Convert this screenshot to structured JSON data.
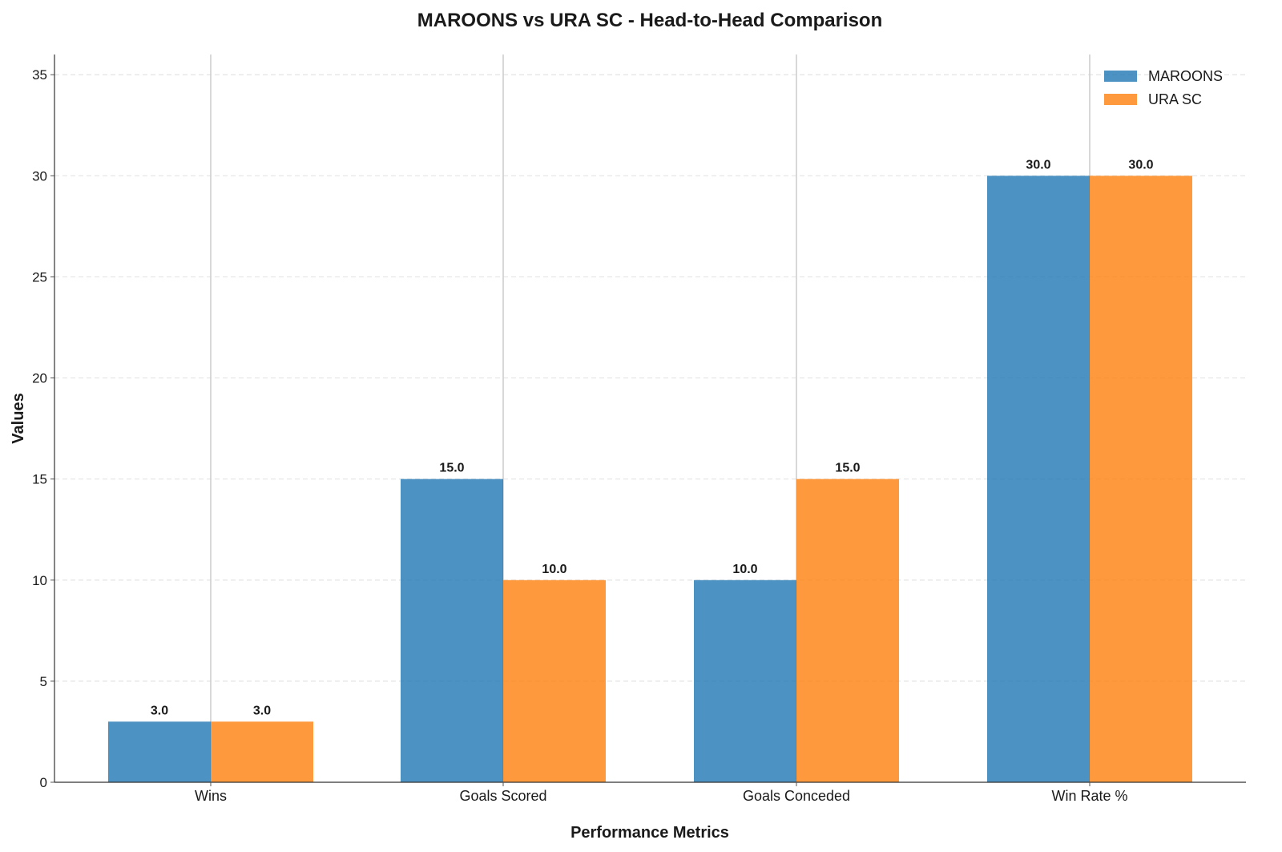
{
  "chart_data": {
    "type": "bar",
    "title": "MAROONS vs URA SC - Head-to-Head Comparison",
    "xlabel": "Performance Metrics",
    "ylabel": "Values",
    "categories": [
      "Wins",
      "Goals Scored",
      "Goals Conceded",
      "Win Rate %"
    ],
    "series": [
      {
        "name": "MAROONS",
        "color": "#1f77b4",
        "values": [
          3.0,
          15.0,
          10.0,
          30.0
        ]
      },
      {
        "name": "URA SC",
        "color": "#ff7f0e",
        "values": [
          3.0,
          10.0,
          15.0,
          30.0
        ]
      }
    ],
    "ylim": [
      0,
      36
    ],
    "yticks": [
      0,
      5,
      10,
      15,
      20,
      25,
      30,
      35
    ],
    "grid": "y-dashed",
    "legend_position": "top-right",
    "data_label_format": "one-decimal"
  }
}
